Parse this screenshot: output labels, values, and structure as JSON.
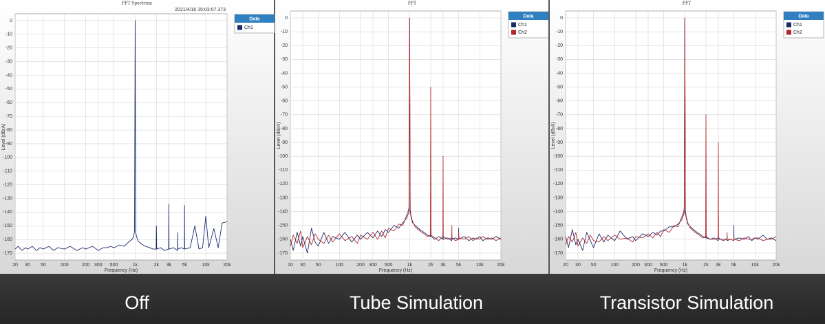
{
  "captions": [
    "Off",
    "Tube Simulation",
    "Transistor Simulation"
  ],
  "chart_data": [
    {
      "type": "line",
      "title": "FFT Spectrum",
      "subtitle": "2021/4/16 15:03:07.373",
      "xlabel": "Frequency (Hz)",
      "ylabel": "Level (dBrA)",
      "xscale": "log",
      "xlim": [
        20,
        20000
      ],
      "ylim": [
        -175,
        5
      ],
      "grid": true,
      "legend_title": "Data",
      "legend": "right",
      "xticks": [
        20,
        30,
        50,
        100,
        200,
        300,
        500,
        {
          "value": 1000,
          "label": "1k"
        },
        {
          "value": 2000,
          "label": "2k"
        },
        {
          "value": 3000,
          "label": "3k"
        },
        {
          "value": 5000,
          "label": "5k"
        },
        {
          "value": 10000,
          "label": "10k"
        },
        {
          "value": 20000,
          "label": "20k"
        }
      ],
      "yticks": [
        0,
        -10,
        -20,
        -30,
        -40,
        -50,
        -60,
        -70,
        -80,
        -90,
        -100,
        -110,
        -120,
        -130,
        -140,
        -150,
        -160,
        -170
      ],
      "x": [
        20,
        22,
        25,
        28,
        30,
        35,
        40,
        45,
        50,
        60,
        70,
        80,
        100,
        120,
        150,
        180,
        200,
        250,
        300,
        350,
        400,
        450,
        500,
        600,
        700,
        800,
        900,
        950,
        980,
        1000,
        1020,
        1050,
        1100,
        1200,
        1400,
        1600,
        1800,
        1980,
        2000,
        2020,
        2300,
        2600,
        2980,
        3000,
        3020,
        3500,
        3980,
        4000,
        4020,
        4500,
        4980,
        5000,
        5020,
        6000,
        7000,
        8000,
        9000,
        10000,
        11000,
        13000,
        15000,
        17000,
        20000
      ],
      "series": [
        {
          "name": "Ch1",
          "color": "#1b2a6b",
          "values": [
            -167,
            -165,
            -168,
            -166,
            -167,
            -165,
            -168,
            -166,
            -167,
            -165,
            -168,
            -166,
            -167,
            -165,
            -168,
            -166,
            -167,
            -165,
            -168,
            -166,
            -166,
            -165,
            -166,
            -164,
            -165,
            -162,
            -160,
            -158,
            -154,
            0,
            -155,
            -158,
            -161,
            -163,
            -165,
            -166,
            -167,
            -167,
            -150,
            -167,
            -166,
            -168,
            -167,
            -134,
            -167,
            -166,
            -168,
            -155,
            -167,
            -166,
            -167,
            -135,
            -167,
            -166,
            -150,
            -167,
            -166,
            -143,
            -166,
            -152,
            -166,
            -148,
            -147
          ]
        }
      ]
    },
    {
      "type": "line",
      "title": "FFT",
      "xlabel": "Frequency (Hz)",
      "ylabel": "Level (dBrA)",
      "xscale": "log",
      "xlim": [
        20,
        20000
      ],
      "ylim": [
        -175,
        5
      ],
      "grid": true,
      "legend_title": "Data",
      "legend": "right",
      "xticks": [
        20,
        30,
        50,
        100,
        200,
        300,
        500,
        {
          "value": 1000,
          "label": "1k"
        },
        {
          "value": 2000,
          "label": "2k"
        },
        {
          "value": 3000,
          "label": "3k"
        },
        {
          "value": 5000,
          "label": "5k"
        },
        {
          "value": 10000,
          "label": "10k"
        },
        {
          "value": 20000,
          "label": "20k"
        }
      ],
      "yticks": [
        0,
        -10,
        -20,
        -30,
        -40,
        -50,
        -60,
        -70,
        -80,
        -90,
        -100,
        -110,
        -120,
        -130,
        -140,
        -150,
        -160,
        -170
      ],
      "x": [
        20,
        22,
        25,
        28,
        30,
        35,
        40,
        45,
        50,
        60,
        70,
        80,
        100,
        120,
        150,
        180,
        200,
        250,
        300,
        350,
        400,
        450,
        500,
        600,
        700,
        800,
        900,
        950,
        980,
        1000,
        1020,
        1050,
        1100,
        1200,
        1400,
        1600,
        1800,
        1980,
        2000,
        2020,
        2300,
        2600,
        2980,
        3000,
        3020,
        3500,
        3980,
        4000,
        4020,
        4500,
        4980,
        5000,
        5020,
        6000,
        7000,
        8000,
        9000,
        10000,
        11000,
        13000,
        15000,
        17000,
        20000
      ],
      "series": [
        {
          "name": "Ch1",
          "color": "#1b2a6b",
          "values": [
            -160,
            -168,
            -155,
            -165,
            -158,
            -170,
            -152,
            -162,
            -165,
            -155,
            -163,
            -158,
            -160,
            -155,
            -162,
            -157,
            -160,
            -155,
            -159,
            -154,
            -158,
            -153,
            -155,
            -150,
            -152,
            -148,
            -145,
            -142,
            -140,
            0,
            -140,
            -144,
            -148,
            -150,
            -153,
            -155,
            -157,
            -158,
            -150,
            -158,
            -160,
            -158,
            -160,
            -155,
            -160,
            -159,
            -161,
            -158,
            -160,
            -159,
            -160,
            -152,
            -160,
            -158,
            -161,
            -159,
            -160,
            -158,
            -161,
            -159,
            -160,
            -158,
            -160
          ]
        },
        {
          "name": "Ch2",
          "color": "#b5262b",
          "values": [
            -165,
            -157,
            -163,
            -154,
            -166,
            -158,
            -164,
            -156,
            -160,
            -163,
            -157,
            -162,
            -156,
            -161,
            -158,
            -163,
            -157,
            -160,
            -155,
            -160,
            -154,
            -159,
            -152,
            -154,
            -149,
            -150,
            -143,
            -140,
            -137,
            0,
            -138,
            -143,
            -147,
            -151,
            -154,
            -156,
            -158,
            -157,
            -50,
            -157,
            -159,
            -161,
            -158,
            -100,
            -158,
            -160,
            -159,
            -150,
            -159,
            -161,
            -160,
            -155,
            -159,
            -160,
            -158,
            -161,
            -159,
            -160,
            -158,
            -160,
            -159,
            -161,
            -159
          ]
        }
      ]
    },
    {
      "type": "line",
      "title": "FFT",
      "xlabel": "Frequency (Hz)",
      "ylabel": "Level (dBrA)",
      "xscale": "log",
      "xlim": [
        20,
        20000
      ],
      "ylim": [
        -175,
        5
      ],
      "grid": true,
      "legend_title": "Data",
      "legend": "right",
      "xticks": [
        20,
        30,
        50,
        100,
        200,
        300,
        500,
        {
          "value": 1000,
          "label": "1k"
        },
        {
          "value": 2000,
          "label": "2k"
        },
        {
          "value": 3000,
          "label": "3k"
        },
        {
          "value": 5000,
          "label": "5k"
        },
        {
          "value": 10000,
          "label": "10k"
        },
        {
          "value": 20000,
          "label": "20k"
        }
      ],
      "yticks": [
        0,
        -10,
        -20,
        -30,
        -40,
        -50,
        -60,
        -70,
        -80,
        -90,
        -100,
        -110,
        -120,
        -130,
        -140,
        -150,
        -160,
        -170
      ],
      "x": [
        20,
        22,
        25,
        28,
        30,
        35,
        40,
        45,
        50,
        60,
        70,
        80,
        100,
        120,
        150,
        180,
        200,
        250,
        300,
        350,
        400,
        450,
        500,
        600,
        700,
        800,
        900,
        950,
        980,
        1000,
        1020,
        1050,
        1100,
        1200,
        1400,
        1600,
        1800,
        1980,
        2000,
        2020,
        2300,
        2600,
        2980,
        3000,
        3020,
        3500,
        3980,
        4000,
        4020,
        4500,
        4980,
        5000,
        5020,
        6000,
        7000,
        8000,
        9000,
        10000,
        11000,
        13000,
        15000,
        17000,
        20000
      ],
      "series": [
        {
          "name": "Ch1",
          "color": "#1b2a6b",
          "values": [
            -158,
            -166,
            -153,
            -164,
            -160,
            -168,
            -155,
            -161,
            -166,
            -156,
            -162,
            -157,
            -161,
            -154,
            -160,
            -158,
            -161,
            -156,
            -158,
            -155,
            -157,
            -154,
            -154,
            -151,
            -151,
            -149,
            -146,
            -143,
            -141,
            0,
            -141,
            -145,
            -149,
            -151,
            -154,
            -156,
            -158,
            -159,
            -155,
            -159,
            -160,
            -159,
            -161,
            -157,
            -160,
            -160,
            -160,
            -158,
            -161,
            -160,
            -161,
            -150,
            -160,
            -159,
            -160,
            -158,
            -161,
            -159,
            -160,
            -157,
            -160,
            -159,
            -161
          ]
        },
        {
          "name": "Ch2",
          "color": "#b5262b",
          "values": [
            -164,
            -158,
            -162,
            -155,
            -165,
            -159,
            -163,
            -157,
            -161,
            -162,
            -158,
            -161,
            -157,
            -160,
            -159,
            -162,
            -158,
            -159,
            -156,
            -159,
            -155,
            -158,
            -153,
            -155,
            -150,
            -151,
            -144,
            -141,
            -138,
            0,
            -139,
            -144,
            -148,
            -152,
            -155,
            -157,
            -159,
            -158,
            -70,
            -158,
            -160,
            -160,
            -159,
            -90,
            -159,
            -161,
            -160,
            -155,
            -160,
            -160,
            -161,
            -158,
            -160,
            -161,
            -159,
            -160,
            -160,
            -159,
            -159,
            -161,
            -160,
            -160,
            -158
          ]
        }
      ]
    }
  ]
}
